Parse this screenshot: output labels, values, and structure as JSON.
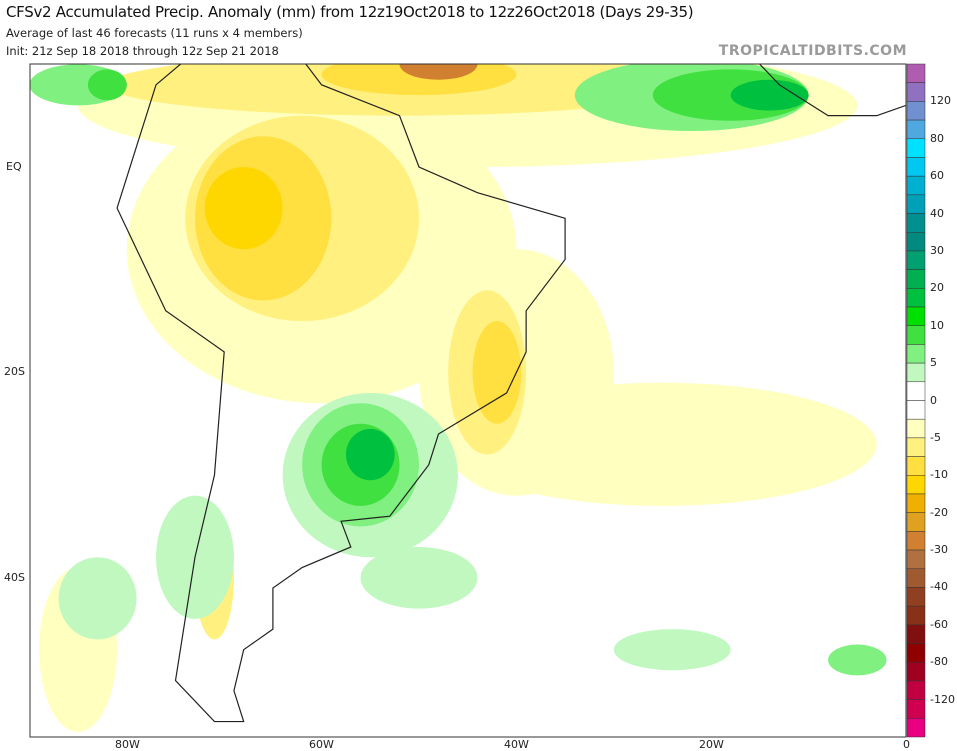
{
  "header": {
    "title": "CFSv2 Accumulated Precip. Anomaly (mm) from 12z19Oct2018 to 12z26Oct2018 (Days 29-35)",
    "subtitle": "Average of last 46 forecasts (11 runs x 4 members)",
    "init": "Init: 21z Sep 18 2018 through 12z Sep 21 2018",
    "brand": "TROPICALTIDBITS.COM"
  },
  "axes": {
    "lat_labels": [
      "EQ",
      "20S",
      "40S"
    ],
    "lon_labels": [
      "80W",
      "60W",
      "40W",
      "20W",
      "0"
    ]
  },
  "colorbar": {
    "labels": [
      "120",
      "80",
      "60",
      "40",
      "30",
      "20",
      "10",
      "5",
      "0",
      "-5",
      "-10",
      "-20",
      "-30",
      "-40",
      "-60",
      "-80",
      "-120"
    ],
    "colors": [
      "#b05cb0",
      "#9070c0",
      "#7090d0",
      "#50a8e0",
      "#00e0ff",
      "#00c8f0",
      "#00b0d0",
      "#00a0b8",
      "#009090",
      "#008a80",
      "#00a070",
      "#00b050",
      "#00c040",
      "#00e000",
      "#40e040",
      "#80f080",
      "#c0f8c0",
      "#ffffff",
      "#ffffff",
      "#ffffc0",
      "#fff080",
      "#ffe040",
      "#ffd700",
      "#f0b000",
      "#e0a020",
      "#d08030",
      "#b07040",
      "#a05a30",
      "#904020",
      "#883018",
      "#801010",
      "#900000",
      "#a00020",
      "#c00040",
      "#d00050",
      "#e80080"
    ]
  }
}
